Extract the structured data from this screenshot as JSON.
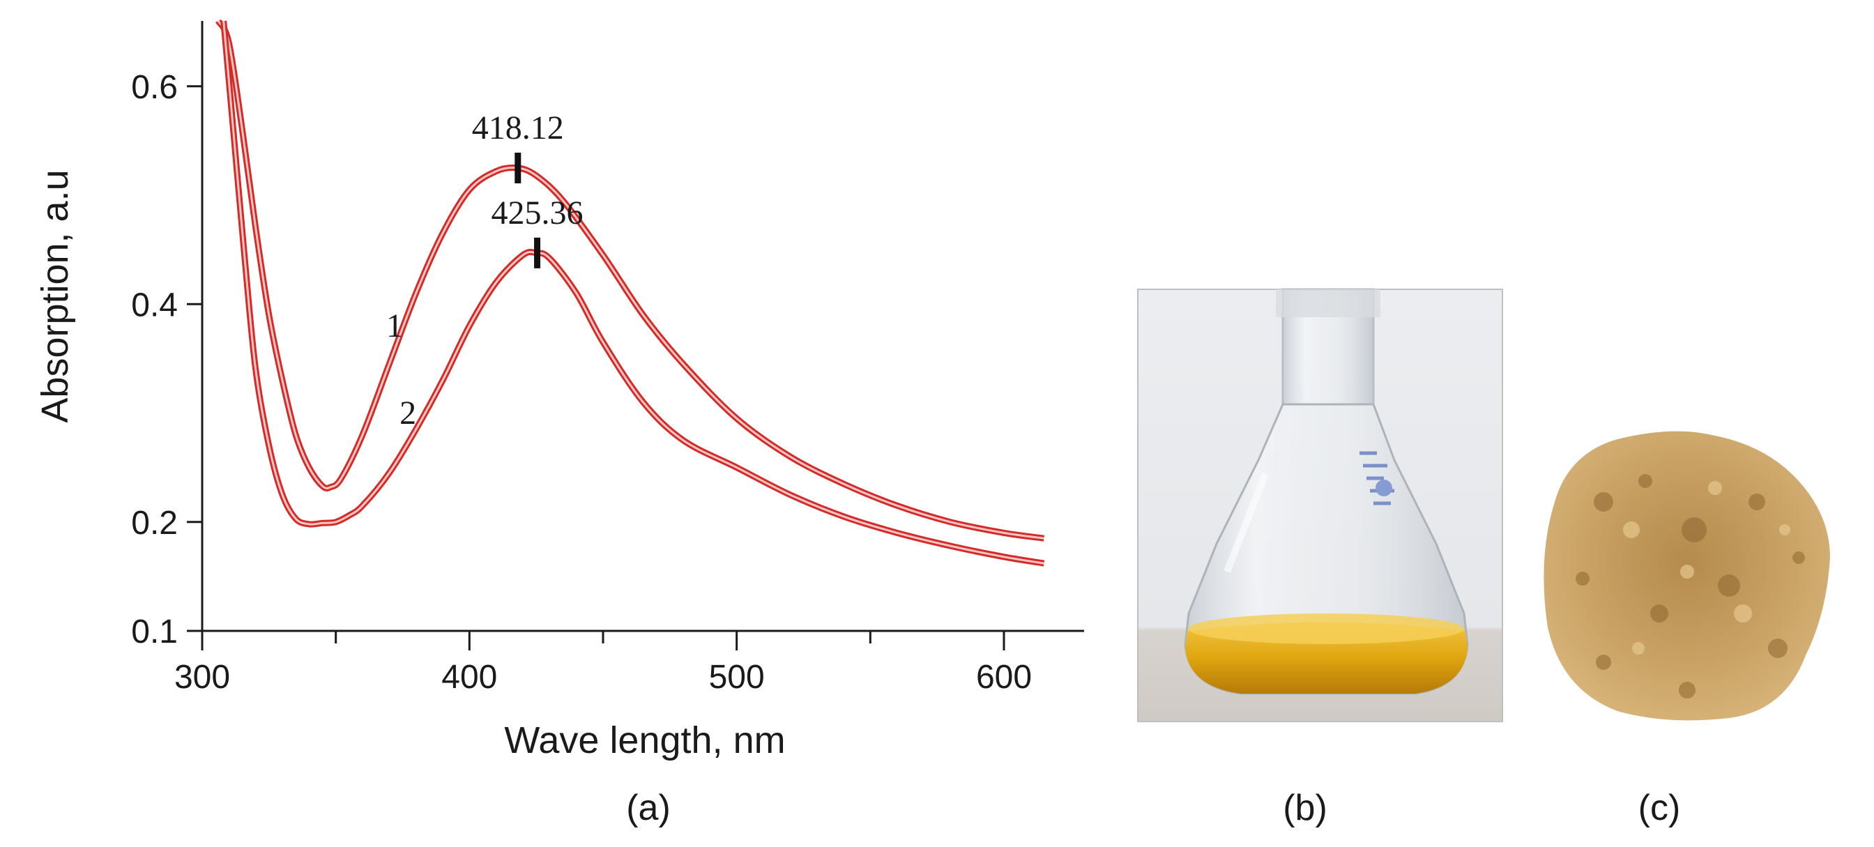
{
  "chart_data": {
    "type": "line",
    "title": "",
    "xlabel": "Wave length, nm",
    "ylabel": "Absorption, a.u",
    "xlim": [
      300,
      630
    ],
    "ylim": [
      0.1,
      0.66
    ],
    "xticks_major": [
      300,
      400,
      500,
      600
    ],
    "xticks_minor": [
      350,
      450,
      550
    ],
    "yticks": [
      0.1,
      0.2,
      0.4,
      0.6
    ],
    "ytick_labels": [
      "0.1",
      "0.2",
      "0.4",
      "0.6"
    ],
    "xtick_labels": [
      "300",
      "400",
      "500",
      "600"
    ],
    "grid": false,
    "line_color": "#d42a2a",
    "series": [
      {
        "name": "1",
        "x": [
          306,
          310,
          315,
          320,
          325,
          330,
          335,
          340,
          345,
          348,
          352,
          360,
          370,
          380,
          390,
          400,
          410,
          418,
          425,
          435,
          450,
          465,
          480,
          500,
          520,
          540,
          560,
          580,
          600,
          615
        ],
        "y": [
          0.66,
          0.64,
          0.56,
          0.47,
          0.39,
          0.33,
          0.28,
          0.25,
          0.233,
          0.232,
          0.24,
          0.28,
          0.345,
          0.41,
          0.465,
          0.505,
          0.522,
          0.525,
          0.518,
          0.495,
          0.445,
          0.39,
          0.345,
          0.295,
          0.26,
          0.235,
          0.215,
          0.2,
          0.19,
          0.185
        ]
      },
      {
        "name": "2",
        "x": [
          308,
          312,
          316,
          320,
          325,
          330,
          335,
          340,
          345,
          350,
          355,
          360,
          370,
          380,
          390,
          400,
          410,
          420,
          425,
          430,
          440,
          450,
          465,
          480,
          500,
          520,
          540,
          560,
          580,
          600,
          615
        ],
        "y": [
          0.66,
          0.55,
          0.44,
          0.34,
          0.27,
          0.225,
          0.203,
          0.198,
          0.199,
          0.2,
          0.206,
          0.215,
          0.245,
          0.285,
          0.33,
          0.38,
          0.42,
          0.445,
          0.447,
          0.442,
          0.41,
          0.365,
          0.31,
          0.275,
          0.25,
          0.225,
          0.205,
          0.19,
          0.178,
          0.168,
          0.162
        ]
      }
    ],
    "peaks": [
      {
        "label": "418.12",
        "x": 418.12,
        "y": 0.525
      },
      {
        "label": "425.36",
        "x": 425.36,
        "y": 0.447
      }
    ],
    "curve_labels": [
      {
        "text": "1",
        "x": 372,
        "y": 0.37
      },
      {
        "text": "2",
        "x": 377,
        "y": 0.29
      }
    ]
  },
  "captions": {
    "a": "(a)",
    "b": "(b)",
    "c": "(c)"
  },
  "photos": {
    "b": {
      "subject": "flask-with-yellow-solution",
      "liquid_color": "#e0a510",
      "glass_color": "#e8ecef"
    },
    "c": {
      "subject": "powder-sample",
      "powder_color": "#c49a58"
    }
  }
}
